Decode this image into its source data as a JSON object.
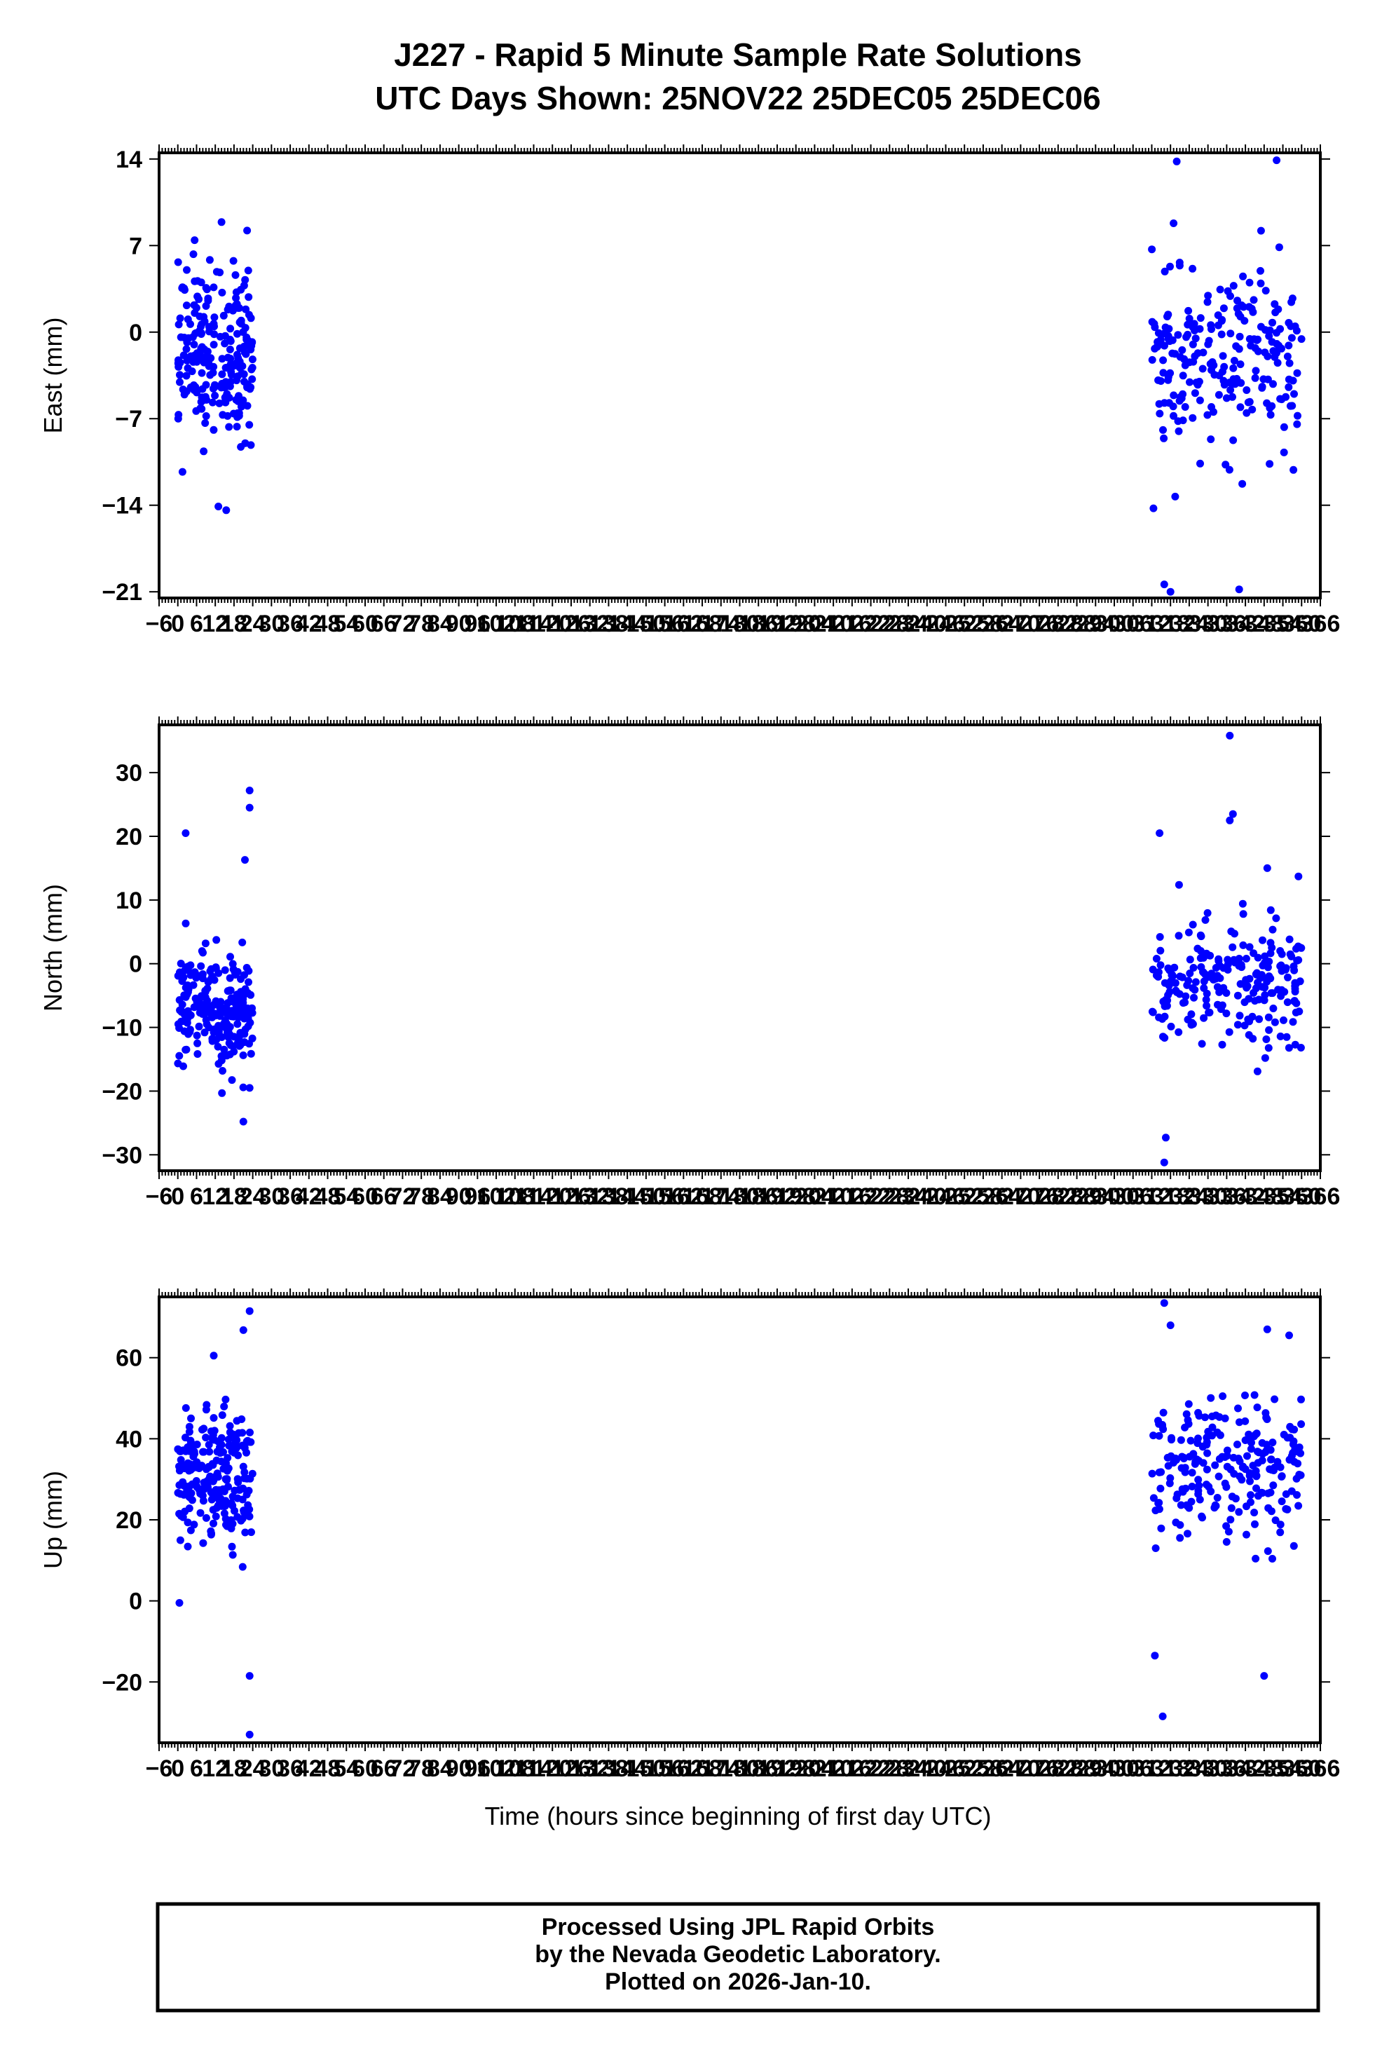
{
  "title_line1": "J227 - Rapid 5 Minute Sample Rate Solutions",
  "title_line2": "UTC Days Shown:  25NOV22 25DEC05 25DEC06",
  "x_axis_title": "Time (hours since beginning of first day UTC)",
  "footer": {
    "line1": "Processed Using JPL Rapid Orbits",
    "line2": "by the Nevada Geodetic Laboratory.",
    "line3": "Plotted on 2026-Jan-10."
  },
  "colors": {
    "points": "#0000ff",
    "axes": "#000000",
    "background": "#ffffff"
  },
  "chart_data": [
    {
      "type": "scatter",
      "name": "east",
      "ylabel": "East (mm)",
      "xlabel": "",
      "xlim": [
        -6,
        366
      ],
      "ylim": [
        -21.5,
        14.5
      ],
      "x_ticks": [
        -6,
        0,
        6,
        12,
        18,
        24,
        30,
        36,
        42,
        48,
        54,
        60,
        66,
        72,
        78,
        84,
        90,
        96,
        102,
        108,
        114,
        120,
        126,
        132,
        138,
        144,
        150,
        156,
        162,
        168,
        174,
        180,
        186,
        192,
        198,
        204,
        210,
        216,
        222,
        228,
        234,
        240,
        246,
        252,
        258,
        264,
        270,
        276,
        282,
        288,
        294,
        300,
        306,
        312,
        318,
        324,
        330,
        336,
        342,
        348,
        354,
        360,
        366
      ],
      "y_ticks": [
        -21,
        -14,
        -7,
        0,
        7,
        14
      ],
      "clusters": [
        {
          "x_range": [
            0,
            24
          ],
          "y_center": -1.5,
          "y_spread": 4.5,
          "outliers": [
            [
              1.5,
              -11.3
            ],
            [
              13,
              -14.1
            ],
            [
              15.5,
              -14.4
            ],
            [
              14,
              8.9
            ],
            [
              5,
              6.3
            ]
          ]
        },
        {
          "x_range": [
            312,
            360
          ],
          "y_center": -2.5,
          "y_spread": 4.5,
          "outliers": [
            [
              316,
              -20.4
            ],
            [
              318,
              -21
            ],
            [
              319.5,
              -13.3
            ],
            [
              320,
              13.8
            ],
            [
              340,
              -20.8
            ],
            [
              352,
              13.9
            ],
            [
              319,
              8.8
            ],
            [
              347,
              8.2
            ]
          ]
        }
      ]
    },
    {
      "type": "scatter",
      "name": "north",
      "ylabel": "North (mm)",
      "xlabel": "",
      "xlim": [
        -6,
        366
      ],
      "ylim": [
        -32.5,
        37.5
      ],
      "x_ticks": [
        -6,
        0,
        6,
        12,
        18,
        24,
        30,
        36,
        42,
        48,
        54,
        60,
        66,
        72,
        78,
        84,
        90,
        96,
        102,
        108,
        114,
        120,
        126,
        132,
        138,
        144,
        150,
        156,
        162,
        168,
        174,
        180,
        186,
        192,
        198,
        204,
        210,
        216,
        222,
        228,
        234,
        240,
        246,
        252,
        258,
        264,
        270,
        276,
        282,
        288,
        294,
        300,
        306,
        312,
        318,
        324,
        330,
        336,
        342,
        348,
        354,
        360,
        366
      ],
      "y_ticks": [
        -30,
        -20,
        -10,
        0,
        10,
        20,
        30
      ],
      "clusters": [
        {
          "x_range": [
            0,
            24
          ],
          "y_center": -7.5,
          "y_spread": 6.0,
          "outliers": [
            [
              2.5,
              20.5
            ],
            [
              23,
              27.2
            ],
            [
              23,
              24.5
            ],
            [
              21,
              -24.8
            ],
            [
              23,
              -19.5
            ],
            [
              21.5,
              16.3
            ]
          ]
        },
        {
          "x_range": [
            312,
            360
          ],
          "y_center": -3.0,
          "y_spread": 6.5,
          "outliers": [
            [
              316,
              -31.2
            ],
            [
              316.5,
              -27.3
            ],
            [
              314.5,
              20.5
            ],
            [
              337,
              35.8
            ],
            [
              338,
              23.5
            ],
            [
              349,
              15
            ],
            [
              359,
              13.7
            ],
            [
              337,
              22.5
            ]
          ]
        }
      ]
    },
    {
      "type": "scatter",
      "name": "up",
      "ylabel": "Up (mm)",
      "xlabel": "Time (hours since beginning of first day UTC)",
      "xlim": [
        -6,
        366
      ],
      "ylim": [
        -35,
        75
      ],
      "x_ticks": [
        -6,
        0,
        6,
        12,
        18,
        24,
        30,
        36,
        42,
        48,
        54,
        60,
        66,
        72,
        78,
        84,
        90,
        96,
        102,
        108,
        114,
        120,
        126,
        132,
        138,
        144,
        150,
        156,
        162,
        168,
        174,
        180,
        186,
        192,
        198,
        204,
        210,
        216,
        222,
        228,
        234,
        240,
        246,
        252,
        258,
        264,
        270,
        276,
        282,
        288,
        294,
        300,
        306,
        312,
        318,
        324,
        330,
        336,
        342,
        348,
        354,
        360,
        366
      ],
      "y_ticks": [
        -20,
        0,
        20,
        40,
        60
      ],
      "clusters": [
        {
          "x_range": [
            0,
            24
          ],
          "y_center": 30,
          "y_spread": 11,
          "outliers": [
            [
              23,
              71.5
            ],
            [
              23,
              -18.5
            ],
            [
              23,
              -33
            ],
            [
              21,
              66.8
            ],
            [
              0.5,
              -0.5
            ],
            [
              11.5,
              60.5
            ]
          ]
        },
        {
          "x_range": [
            312,
            360
          ],
          "y_center": 32,
          "y_spread": 11,
          "outliers": [
            [
              316,
              73.5
            ],
            [
              315.5,
              -28.5
            ],
            [
              318,
              68
            ],
            [
              349,
              67
            ],
            [
              348,
              -18.5
            ],
            [
              313,
              -13.5
            ],
            [
              356,
              65.5
            ]
          ]
        }
      ]
    }
  ]
}
